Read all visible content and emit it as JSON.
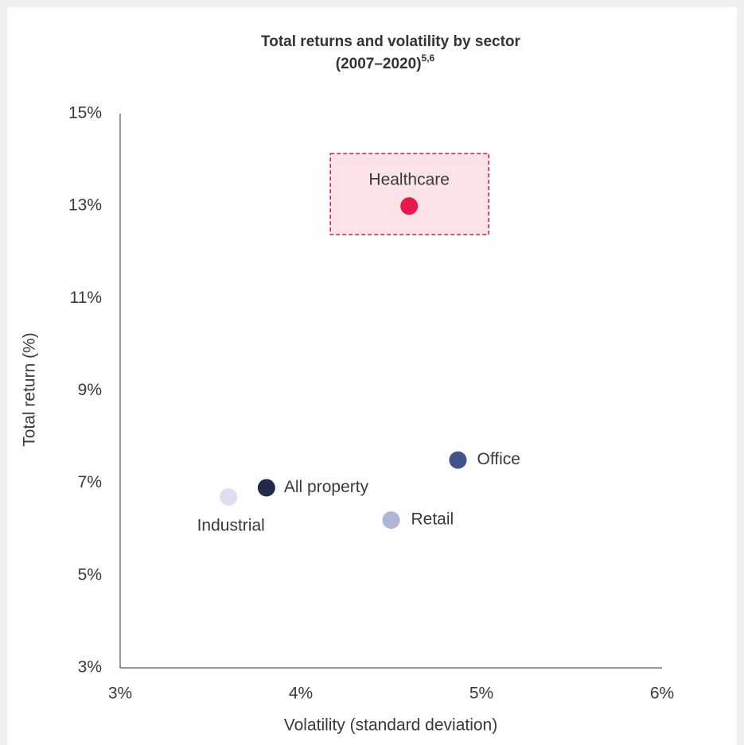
{
  "chart_data": {
    "type": "scatter",
    "title": [
      "Total returns and volatility by sector",
      "(2007–2020)"
    ],
    "title_superscript": "5,6",
    "x_label": "Volatility (standard deviation)",
    "y_label": "Total return (%)",
    "labels": [
      "Healthcare",
      "Office",
      "All property",
      "Industrial",
      "Retail"
    ],
    "x": [
      4.6,
      4.87,
      3.81,
      3.6,
      4.5
    ],
    "values": [
      13.0,
      7.5,
      6.9,
      6.7,
      6.2
    ],
    "colors": [
      "#e8194b",
      "#43538f",
      "#1f2a4d",
      "#dcdff0",
      "#aeb6d6"
    ],
    "xlim": [
      3,
      6
    ],
    "xticks": [
      {
        "value": 3,
        "label": "3%"
      },
      {
        "value": 4,
        "label": "4%"
      },
      {
        "value": 5,
        "label": "5%"
      },
      {
        "value": 6,
        "label": "6%"
      }
    ],
    "ylim": [
      3,
      15
    ],
    "yticks": [
      {
        "value": 3,
        "label": "3%"
      },
      {
        "value": 5,
        "label": "5%"
      },
      {
        "value": 7,
        "label": "7%"
      },
      {
        "value": 9,
        "label": "9%"
      },
      {
        "value": 11,
        "label": "11%"
      },
      {
        "value": 13,
        "label": "13%"
      },
      {
        "value": 15,
        "label": "15%"
      }
    ],
    "grid": false
  }
}
